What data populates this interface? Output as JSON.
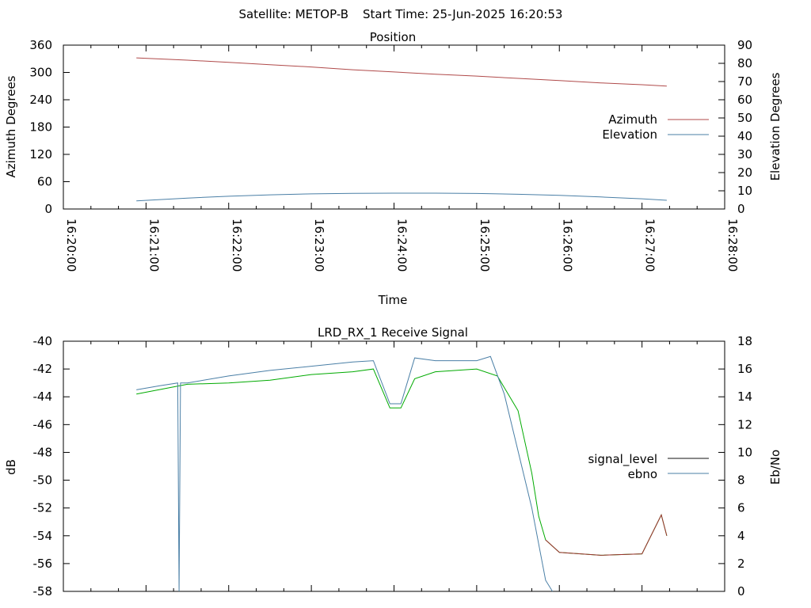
{
  "header": {
    "satellite": "Satellite: METOP-B",
    "start_time": "Start Time: 25-Jun-2025 16:20:53"
  },
  "colors": {
    "azimuth": "#b04a4a",
    "elevation": "#4a7fa6",
    "signal_level": "#111111",
    "ebno": "#4a7fa6",
    "signal_low_trace": "#a03030",
    "green_trace": "#00aa00"
  },
  "chart_data": [
    {
      "type": "line",
      "title": "Position",
      "xlabel": "Time",
      "ylabel": "Azimuth Degrees",
      "y2label": "Elevation Degrees",
      "xlim": [
        "16:20:00",
        "16:28:00"
      ],
      "ylim": [
        0,
        360
      ],
      "y2lim": [
        0,
        90
      ],
      "xticks": [
        "16:20:00",
        "16:21:00",
        "16:22:00",
        "16:23:00",
        "16:24:00",
        "16:25:00",
        "16:26:00",
        "16:27:00",
        "16:28:00"
      ],
      "yticks": [
        0,
        60,
        120,
        180,
        240,
        300,
        360
      ],
      "y2ticks": [
        0,
        10,
        20,
        30,
        40,
        50,
        60,
        70,
        80,
        90
      ],
      "legend": "right",
      "series": [
        {
          "name": "Azimuth",
          "axis": "y",
          "x": [
            "16:20:53",
            "16:21:30",
            "16:22:00",
            "16:22:30",
            "16:23:00",
            "16:23:30",
            "16:24:00",
            "16:24:30",
            "16:25:00",
            "16:25:30",
            "16:26:00",
            "16:26:30",
            "16:27:00",
            "16:27:18"
          ],
          "y": [
            332,
            327,
            322,
            317,
            312,
            306,
            301,
            296,
            292,
            287,
            282,
            277,
            273,
            270
          ]
        },
        {
          "name": "Elevation",
          "axis": "y2",
          "x": [
            "16:20:53",
            "16:21:30",
            "16:22:00",
            "16:22:30",
            "16:23:00",
            "16:23:30",
            "16:24:00",
            "16:24:30",
            "16:25:00",
            "16:25:30",
            "16:26:00",
            "16:26:30",
            "16:27:00",
            "16:27:18"
          ],
          "y": [
            4.5,
            6,
            7,
            7.8,
            8.3,
            8.6,
            8.7,
            8.7,
            8.5,
            8.1,
            7.5,
            6.6,
            5.6,
            4.8
          ]
        }
      ]
    },
    {
      "type": "line",
      "title": "LRD_RX_1 Receive Signal",
      "ylabel": "dB",
      "y2label": "Eb/No",
      "xlim": [
        "16:20:00",
        "16:28:00"
      ],
      "ylim": [
        -58,
        -40
      ],
      "y2lim": [
        0,
        18
      ],
      "yticks": [
        -58,
        -56,
        -54,
        -52,
        -50,
        -48,
        -46,
        -44,
        -42,
        -40
      ],
      "y2ticks": [
        0,
        2,
        4,
        6,
        8,
        10,
        12,
        14,
        16,
        18
      ],
      "legend": "right",
      "series": [
        {
          "name": "signal_level",
          "axis": "y",
          "x": [
            "16:20:53",
            "16:21:30",
            "16:22:00",
            "16:22:30",
            "16:23:00",
            "16:23:30",
            "16:23:45",
            "16:23:57",
            "16:24:05",
            "16:24:15",
            "16:24:30",
            "16:25:00",
            "16:25:15",
            "16:25:30",
            "16:25:40",
            "16:25:45",
            "16:25:50",
            "16:26:00",
            "16:26:30",
            "16:27:00",
            "16:27:14",
            "16:27:18"
          ],
          "y": [
            -43.8,
            -43.1,
            -43.0,
            -42.8,
            -42.4,
            -42.2,
            -42.0,
            -44.8,
            -44.8,
            -42.7,
            -42.2,
            -42.0,
            -42.5,
            -45.0,
            -49.5,
            -52.6,
            -54.3,
            -55.2,
            -55.4,
            -55.3,
            -52.5,
            -54.0
          ]
        },
        {
          "name": "ebno",
          "axis": "y2",
          "x": [
            "16:20:53",
            "16:21:10",
            "16:21:23",
            "16:21:24",
            "16:21:25",
            "16:21:30",
            "16:22:00",
            "16:22:30",
            "16:23:00",
            "16:23:30",
            "16:23:45",
            "16:23:57",
            "16:24:05",
            "16:24:15",
            "16:24:30",
            "16:25:00",
            "16:25:10",
            "16:25:20",
            "16:25:40",
            "16:25:50",
            "16:25:55"
          ],
          "y": [
            14.5,
            14.8,
            15.0,
            0,
            15.0,
            15.0,
            15.5,
            15.9,
            16.2,
            16.5,
            16.6,
            13.5,
            13.5,
            16.8,
            16.6,
            16.6,
            16.9,
            14.2,
            6.0,
            0.8,
            0
          ]
        }
      ]
    }
  ]
}
